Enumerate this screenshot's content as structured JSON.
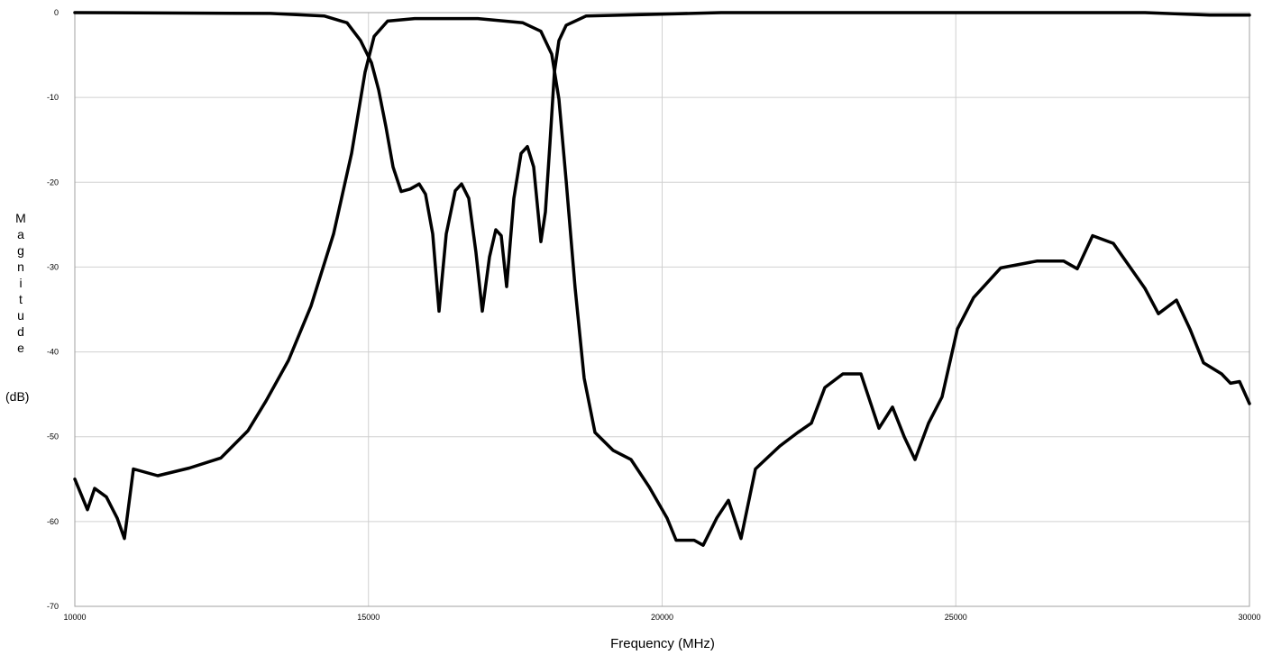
{
  "chart_data": {
    "type": "line",
    "x_label": "Frequency (MHz)",
    "y_label": "Magnitude",
    "y_unit": "(dB)",
    "xlim": [
      10000,
      30000
    ],
    "xticks": [
      10000,
      15000,
      20000,
      25000,
      30000
    ],
    "ylim": [
      -70,
      0
    ],
    "yticks": [
      0,
      -10,
      -20,
      -30,
      -40,
      -50,
      -60,
      -70
    ],
    "grid": true,
    "series": [
      {
        "color": "#000000",
        "x": [
          10000,
          10215,
          10338,
          10537,
          10721,
          10844,
          10998,
          11412,
          11949,
          12487,
          12947,
          13254,
          13638,
          14022,
          14405,
          14712,
          14942,
          15096,
          15326,
          15787,
          16861,
          17629,
          17936,
          18120,
          18243,
          18365,
          18519,
          18672,
          18856,
          19163,
          19470,
          19777,
          20084,
          20238,
          20545,
          20698,
          20928,
          21128,
          21343,
          21588,
          22003,
          22310,
          22540,
          22770,
          23077,
          23384,
          23691,
          23922,
          24121,
          24305,
          24536,
          24766,
          25027,
          25303,
          25764,
          26378,
          26838,
          27069,
          27330,
          27683,
          28220,
          28450,
          28757,
          28987,
          29218,
          29525,
          29678,
          29831,
          30000
        ],
        "values": [
          -55,
          -58.6,
          -56.1,
          -57.1,
          -59.6,
          -62,
          -53.8,
          -54.6,
          -53.7,
          -52.5,
          -49.3,
          -45.8,
          -41,
          -34.6,
          -26.1,
          -16.6,
          -7,
          -2.8,
          -1,
          -0.7,
          -0.7,
          -1.2,
          -2.2,
          -4.9,
          -10.2,
          -19.8,
          -32.5,
          -43.1,
          -49.5,
          -51.6,
          -52.7,
          -55.9,
          -59.6,
          -62.2,
          -62.2,
          -62.8,
          -59.6,
          -57.5,
          -62,
          -53.8,
          -51.1,
          -49.5,
          -48.4,
          -44.2,
          -42.6,
          -42.6,
          -49,
          -46.5,
          -50,
          -52.7,
          -48.4,
          -45.3,
          -37.3,
          -33.6,
          -30.1,
          -29.3,
          -29.3,
          -30.2,
          -26.3,
          -27.2,
          -32.5,
          -35.5,
          -33.9,
          -37.3,
          -41.3,
          -42.6,
          -43.7,
          -43.5,
          -46.1
        ]
      },
      {
        "color": "#000000",
        "x": [
          10000,
          13331,
          14252,
          14636,
          14866,
          15050,
          15173,
          15296,
          15419,
          15557,
          15710,
          15864,
          15971,
          16094,
          16201,
          16324,
          16477,
          16585,
          16708,
          16830,
          16938,
          17061,
          17168,
          17260,
          17352,
          17475,
          17598,
          17705,
          17813,
          17936,
          18012,
          18089,
          18166,
          18243,
          18365,
          18703,
          21005,
          28220,
          29325,
          30000
        ],
        "values": [
          0,
          -0.1,
          -0.4,
          -1.2,
          -3.3,
          -5.9,
          -9.1,
          -13.4,
          -18.2,
          -21.1,
          -20.8,
          -20.2,
          -21.4,
          -26.1,
          -35.2,
          -26.1,
          -21,
          -20.2,
          -21.9,
          -28.3,
          -35.2,
          -28.8,
          -25.6,
          -26.3,
          -32.3,
          -21.9,
          -16.6,
          -15.8,
          -18.2,
          -27,
          -23.5,
          -15.5,
          -7,
          -3.3,
          -1.5,
          -0.4,
          0,
          0,
          -0.3,
          -0.3
        ]
      }
    ]
  }
}
